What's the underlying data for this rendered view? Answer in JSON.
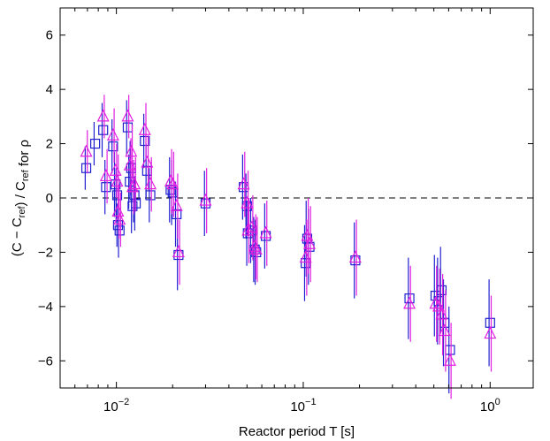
{
  "chart_data": {
    "type": "scatter",
    "xscale": "log",
    "xlim": [
      0.005,
      1.7
    ],
    "ylim": [
      -7,
      7
    ],
    "xlabel": "Reactor period T [s]",
    "ylabel": "(C − C_ref) / C_ref for ρ",
    "x_ticks": [
      {
        "value": 0.01,
        "base": "10",
        "exp": "−2"
      },
      {
        "value": 0.1,
        "base": "10",
        "exp": "−1"
      },
      {
        "value": 1,
        "base": "10",
        "exp": "0"
      }
    ],
    "y_ticks": [
      {
        "value": -6,
        "label": "−6"
      },
      {
        "value": -4,
        "label": "−4"
      },
      {
        "value": -2,
        "label": "−2"
      },
      {
        "value": 0,
        "label": "0"
      },
      {
        "value": 2,
        "label": "2"
      },
      {
        "value": 4,
        "label": "4"
      },
      {
        "value": 6,
        "label": "6"
      }
    ],
    "reference_line": {
      "y": 0,
      "style": "dashed"
    },
    "grid": false,
    "series": [
      {
        "marker": "square",
        "color": "#2020d0",
        "points": [
          {
            "x": 0.0069,
            "y": 1.1,
            "lo": 0.8,
            "hi": 0.8
          },
          {
            "x": 0.0077,
            "y": 2.0,
            "lo": 0.8,
            "hi": 0.8
          },
          {
            "x": 0.0085,
            "y": 2.5,
            "lo": 1.0,
            "hi": 1.0
          },
          {
            "x": 0.0088,
            "y": 0.4,
            "lo": 1.0,
            "hi": 1.0
          },
          {
            "x": 0.0096,
            "y": 1.9,
            "lo": 1.0,
            "hi": 1.0
          },
          {
            "x": 0.0099,
            "y": 0.5,
            "lo": 1.2,
            "hi": 1.2
          },
          {
            "x": 0.0101,
            "y": 0.1,
            "lo": 1.0,
            "hi": 1.0
          },
          {
            "x": 0.0102,
            "y": -1.0,
            "lo": 0.8,
            "hi": 0.8
          },
          {
            "x": 0.0104,
            "y": -1.2,
            "lo": 1.0,
            "hi": 1.0
          },
          {
            "x": 0.0115,
            "y": 2.6,
            "lo": 1.0,
            "hi": 1.0
          },
          {
            "x": 0.0118,
            "y": 0.6,
            "lo": 1.0,
            "hi": 1.0
          },
          {
            "x": 0.012,
            "y": 1.1,
            "lo": 1.0,
            "hi": 1.0
          },
          {
            "x": 0.0122,
            "y": -0.3,
            "lo": 1.0,
            "hi": 1.0
          },
          {
            "x": 0.0125,
            "y": 0.1,
            "lo": 1.0,
            "hi": 1.0
          },
          {
            "x": 0.0127,
            "y": -0.2,
            "lo": 1.0,
            "hi": 1.0
          },
          {
            "x": 0.0142,
            "y": 2.1,
            "lo": 1.0,
            "hi": 1.0
          },
          {
            "x": 0.0146,
            "y": 1.0,
            "lo": 1.0,
            "hi": 1.0
          },
          {
            "x": 0.0152,
            "y": 0.1,
            "lo": 1.0,
            "hi": 1.0
          },
          {
            "x": 0.0195,
            "y": 0.3,
            "lo": 1.2,
            "hi": 1.2
          },
          {
            "x": 0.02,
            "y": 0.2,
            "lo": 1.2,
            "hi": 1.2
          },
          {
            "x": 0.021,
            "y": -0.6,
            "lo": 1.2,
            "hi": 1.2
          },
          {
            "x": 0.0215,
            "y": -2.1,
            "lo": 1.3,
            "hi": 1.3
          },
          {
            "x": 0.03,
            "y": -0.2,
            "lo": 1.2,
            "hi": 1.2
          },
          {
            "x": 0.048,
            "y": 0.4,
            "lo": 1.2,
            "hi": 1.2
          },
          {
            "x": 0.05,
            "y": -0.3,
            "lo": 1.2,
            "hi": 1.2
          },
          {
            "x": 0.0505,
            "y": -1.3,
            "lo": 1.2,
            "hi": 1.2
          },
          {
            "x": 0.053,
            "y": -1.2,
            "lo": 1.2,
            "hi": 1.2
          },
          {
            "x": 0.055,
            "y": -1.9,
            "lo": 1.2,
            "hi": 1.2
          },
          {
            "x": 0.056,
            "y": -2.0,
            "lo": 1.2,
            "hi": 1.2
          },
          {
            "x": 0.063,
            "y": -1.4,
            "lo": 1.2,
            "hi": 1.2
          },
          {
            "x": 0.103,
            "y": -2.4,
            "lo": 1.4,
            "hi": 1.4
          },
          {
            "x": 0.105,
            "y": -1.5,
            "lo": 1.4,
            "hi": 1.4
          },
          {
            "x": 0.108,
            "y": -1.8,
            "lo": 1.4,
            "hi": 1.4
          },
          {
            "x": 0.19,
            "y": -2.3,
            "lo": 1.4,
            "hi": 1.4
          },
          {
            "x": 0.37,
            "y": -3.7,
            "lo": 1.5,
            "hi": 1.5
          },
          {
            "x": 0.51,
            "y": -3.6,
            "lo": 1.5,
            "hi": 1.5
          },
          {
            "x": 0.53,
            "y": -3.8,
            "lo": 1.6,
            "hi": 1.6
          },
          {
            "x": 0.55,
            "y": -3.4,
            "lo": 1.6,
            "hi": 1.6
          },
          {
            "x": 0.57,
            "y": -4.6,
            "lo": 1.6,
            "hi": 1.6
          },
          {
            "x": 0.61,
            "y": -5.6,
            "lo": 1.6,
            "hi": 1.6
          },
          {
            "x": 1.0,
            "y": -4.6,
            "lo": 1.6,
            "hi": 1.6
          }
        ]
      },
      {
        "marker": "triangle",
        "color": "#e020e0",
        "points": [
          {
            "x": 0.0069,
            "y": 1.7,
            "lo": 0.8,
            "hi": 0.8
          },
          {
            "x": 0.0085,
            "y": 3.0,
            "lo": 0.8,
            "hi": 0.8
          },
          {
            "x": 0.0088,
            "y": 0.8,
            "lo": 1.0,
            "hi": 1.0
          },
          {
            "x": 0.0096,
            "y": 2.3,
            "lo": 1.0,
            "hi": 1.0
          },
          {
            "x": 0.0099,
            "y": 1.0,
            "lo": 1.0,
            "hi": 1.0
          },
          {
            "x": 0.0101,
            "y": 0.6,
            "lo": 1.0,
            "hi": 1.0
          },
          {
            "x": 0.0102,
            "y": -0.5,
            "lo": 1.0,
            "hi": 1.0
          },
          {
            "x": 0.0104,
            "y": -0.8,
            "lo": 1.0,
            "hi": 1.0
          },
          {
            "x": 0.0115,
            "y": 3.0,
            "lo": 0.8,
            "hi": 0.8
          },
          {
            "x": 0.0118,
            "y": 1.2,
            "lo": 1.0,
            "hi": 1.0
          },
          {
            "x": 0.012,
            "y": 1.7,
            "lo": 1.0,
            "hi": 1.0
          },
          {
            "x": 0.0122,
            "y": 0.4,
            "lo": 1.0,
            "hi": 1.0
          },
          {
            "x": 0.0125,
            "y": 0.5,
            "lo": 1.0,
            "hi": 1.0
          },
          {
            "x": 0.0142,
            "y": 2.5,
            "lo": 1.0,
            "hi": 1.0
          },
          {
            "x": 0.0146,
            "y": 1.3,
            "lo": 1.0,
            "hi": 1.0
          },
          {
            "x": 0.0152,
            "y": 0.5,
            "lo": 1.0,
            "hi": 1.0
          },
          {
            "x": 0.0195,
            "y": 0.6,
            "lo": 1.2,
            "hi": 1.2
          },
          {
            "x": 0.02,
            "y": 0.5,
            "lo": 1.2,
            "hi": 1.2
          },
          {
            "x": 0.021,
            "y": -0.3,
            "lo": 1.2,
            "hi": 1.2
          },
          {
            "x": 0.0215,
            "y": -2.0,
            "lo": 1.2,
            "hi": 1.2
          },
          {
            "x": 0.03,
            "y": -0.1,
            "lo": 1.2,
            "hi": 1.2
          },
          {
            "x": 0.048,
            "y": 0.5,
            "lo": 1.2,
            "hi": 1.2
          },
          {
            "x": 0.05,
            "y": -0.2,
            "lo": 1.2,
            "hi": 1.2
          },
          {
            "x": 0.0505,
            "y": -1.2,
            "lo": 1.2,
            "hi": 1.2
          },
          {
            "x": 0.053,
            "y": -1.1,
            "lo": 1.2,
            "hi": 1.2
          },
          {
            "x": 0.055,
            "y": -1.8,
            "lo": 1.2,
            "hi": 1.2
          },
          {
            "x": 0.056,
            "y": -1.9,
            "lo": 1.2,
            "hi": 1.2
          },
          {
            "x": 0.063,
            "y": -1.3,
            "lo": 1.2,
            "hi": 1.2
          },
          {
            "x": 0.103,
            "y": -2.2,
            "lo": 1.4,
            "hi": 1.4
          },
          {
            "x": 0.105,
            "y": -1.4,
            "lo": 1.4,
            "hi": 1.4
          },
          {
            "x": 0.108,
            "y": -1.7,
            "lo": 1.4,
            "hi": 1.4
          },
          {
            "x": 0.19,
            "y": -2.2,
            "lo": 1.4,
            "hi": 1.4
          },
          {
            "x": 0.37,
            "y": -3.9,
            "lo": 1.4,
            "hi": 1.4
          },
          {
            "x": 0.51,
            "y": -3.9,
            "lo": 1.4,
            "hi": 1.4
          },
          {
            "x": 0.53,
            "y": -4.0,
            "lo": 1.4,
            "hi": 1.4
          },
          {
            "x": 0.55,
            "y": -4.3,
            "lo": 1.5,
            "hi": 1.5
          },
          {
            "x": 0.57,
            "y": -4.9,
            "lo": 1.5,
            "hi": 1.5
          },
          {
            "x": 0.61,
            "y": -6.0,
            "lo": 1.4,
            "hi": 1.4
          },
          {
            "x": 1.0,
            "y": -5.0,
            "lo": 1.4,
            "hi": 1.4
          }
        ]
      }
    ]
  }
}
